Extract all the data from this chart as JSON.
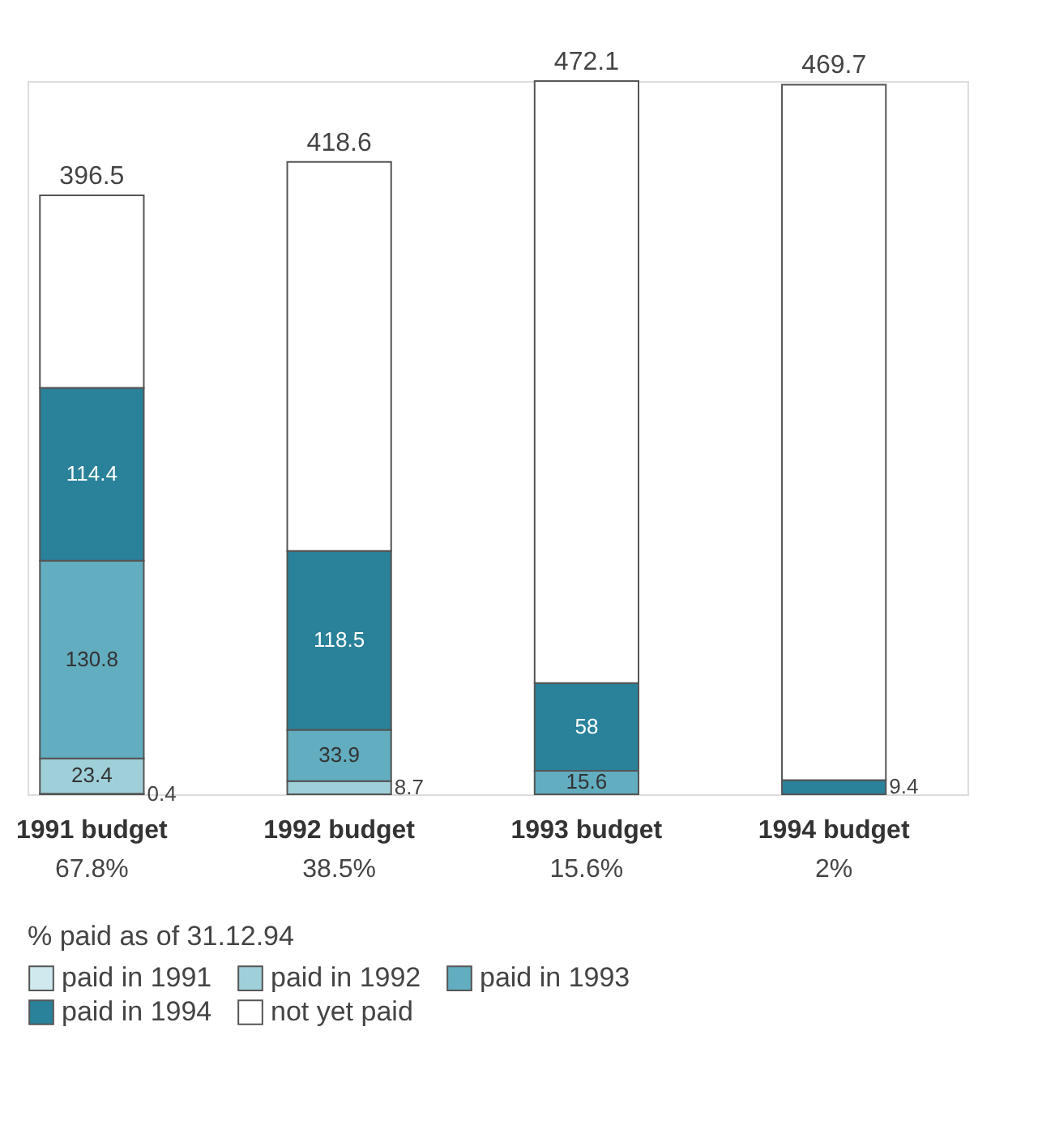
{
  "chart_data": {
    "type": "bar",
    "stacked": true,
    "categories": [
      "1991 budget",
      "1992 budget",
      "1993 budget",
      "1994 budget"
    ],
    "series": [
      {
        "name": "paid in 1991",
        "color": "#cfe9ee",
        "values": [
          0.4,
          null,
          null,
          null
        ],
        "value_labels": [
          "0.4",
          null,
          null,
          null
        ]
      },
      {
        "name": "paid in 1992",
        "color": "#9fd0da",
        "values": [
          23.4,
          8.7,
          null,
          null
        ],
        "value_labels": [
          "23.4",
          "8.7",
          null,
          null
        ]
      },
      {
        "name": "paid in 1993",
        "color": "#62adbf",
        "values": [
          130.8,
          33.9,
          15.6,
          null
        ],
        "value_labels": [
          "130.8",
          "33.9",
          "15.6",
          null
        ]
      },
      {
        "name": "paid in 1994",
        "color": "#2a819a",
        "values": [
          114.4,
          118.5,
          58,
          9.4
        ],
        "value_labels": [
          "114.4",
          "118.5",
          "58",
          "9.4"
        ]
      },
      {
        "name": "not yet paid",
        "color": "#ffffff",
        "values": [
          127.5,
          257.5,
          398.5,
          460.3
        ],
        "value_labels": [
          null,
          null,
          null,
          null
        ]
      }
    ],
    "totals": [
      "396.5",
      "418.6",
      "472.1",
      "469.7"
    ],
    "legend_title": "% paid as of 31.12.94",
    "legend": "bottom",
    "annotations": [
      "67.8%",
      "38.5%",
      "15.6%",
      "2%"
    ]
  }
}
